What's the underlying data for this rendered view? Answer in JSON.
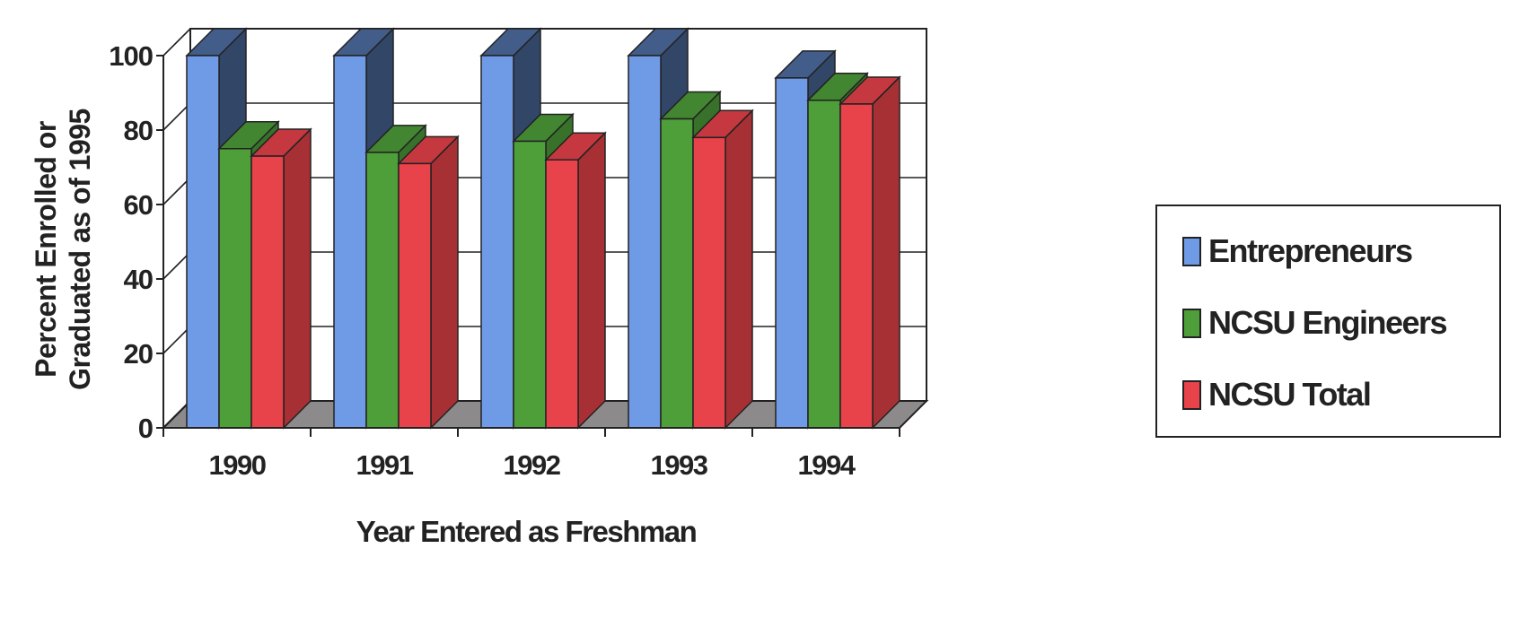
{
  "chart_data": {
    "type": "bar",
    "title": "",
    "xlabel": "Year Entered as Freshman",
    "ylabel_line1": "Percent Enrolled or",
    "ylabel_line2": "Graduated as of 1995",
    "categories": [
      "1990",
      "1991",
      "1992",
      "1993",
      "1994"
    ],
    "yticks": [
      "0",
      "20",
      "40",
      "60",
      "80",
      "100"
    ],
    "ylim": [
      0,
      100
    ],
    "grid": true,
    "legend_position": "right",
    "series": [
      {
        "name": "Entrepreneurs",
        "values": [
          100,
          100,
          100,
          100,
          94
        ],
        "color": "#6f9be6"
      },
      {
        "name": "NCSU Engineers",
        "values": [
          75,
          74,
          77,
          83,
          88
        ],
        "color": "#4e9e3a"
      },
      {
        "name": "NCSU Total",
        "values": [
          73,
          71,
          72,
          78,
          87
        ],
        "color": "#e8424a"
      }
    ]
  }
}
